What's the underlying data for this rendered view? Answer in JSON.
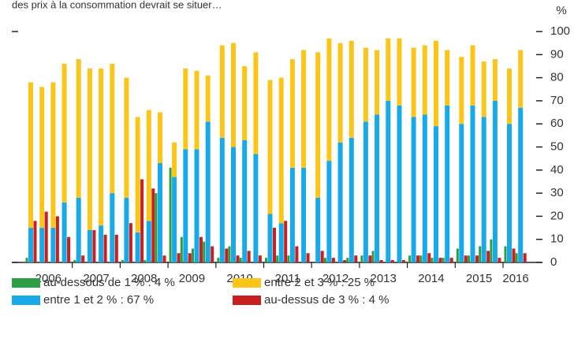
{
  "chart_data": {
    "type": "grouped_stacked_bar",
    "title": "des prix à la consommation devrait se situer…",
    "y_unit": "%",
    "year_labels": [
      "2006",
      "2007",
      "2008",
      "2009",
      "2010",
      "2011",
      "2012",
      "2013",
      "2014",
      "2015",
      "2016"
    ],
    "ylim": [
      0,
      100
    ],
    "yticks": [
      0,
      10,
      20,
      30,
      40,
      50,
      60,
      70,
      80,
      90,
      100
    ],
    "series": [
      {
        "name": "au-dessous de 1 %",
        "legend_value": "4 %",
        "color": "#2e9e44",
        "values": [
          2,
          0,
          0,
          0,
          1,
          0,
          0,
          0,
          1,
          0,
          1,
          30,
          41,
          11,
          6,
          9,
          2,
          7,
          2,
          0,
          2,
          3,
          3,
          0,
          0,
          2,
          0,
          2,
          3,
          5,
          0,
          0,
          3,
          3,
          2,
          2,
          6,
          3,
          7,
          10,
          7,
          4
        ]
      },
      {
        "name": "entre 1 et 2 %",
        "legend_value": "67 %",
        "color": "#17a9e8",
        "stack": true,
        "values": [
          15,
          15,
          15,
          26,
          28,
          14,
          16,
          30,
          28,
          13,
          18,
          43,
          37,
          49,
          49,
          61,
          54,
          50,
          53,
          47,
          21,
          17,
          41,
          41,
          28,
          44,
          52,
          54,
          61,
          64,
          70,
          68,
          63,
          64,
          59,
          68,
          60,
          68,
          63,
          70,
          60,
          67
        ]
      },
      {
        "name": "entre 2 et 3 %",
        "legend_value": "25 %",
        "color": "#fcc51a",
        "stack": true,
        "values": [
          63,
          61,
          63,
          60,
          60,
          70,
          68,
          56,
          52,
          50,
          48,
          22,
          15,
          35,
          34,
          20,
          40,
          45,
          32,
          44,
          58,
          63,
          47,
          51,
          63,
          53,
          43,
          42,
          32,
          28,
          27,
          29,
          30,
          30,
          37,
          24,
          29,
          26,
          24,
          18,
          24,
          25
        ]
      },
      {
        "name": "au-dessus de 3 %",
        "legend_value": "4 %",
        "color": "#c8201e",
        "values": [
          18,
          22,
          20,
          11,
          3,
          14,
          12,
          12,
          17,
          36,
          32,
          3,
          4,
          4,
          11,
          7,
          6,
          3,
          5,
          3,
          15,
          18,
          7,
          4,
          5,
          2,
          1,
          3,
          3,
          1,
          1,
          1,
          3,
          4,
          2,
          2,
          3,
          3,
          5,
          2,
          6,
          4
        ]
      }
    ]
  }
}
